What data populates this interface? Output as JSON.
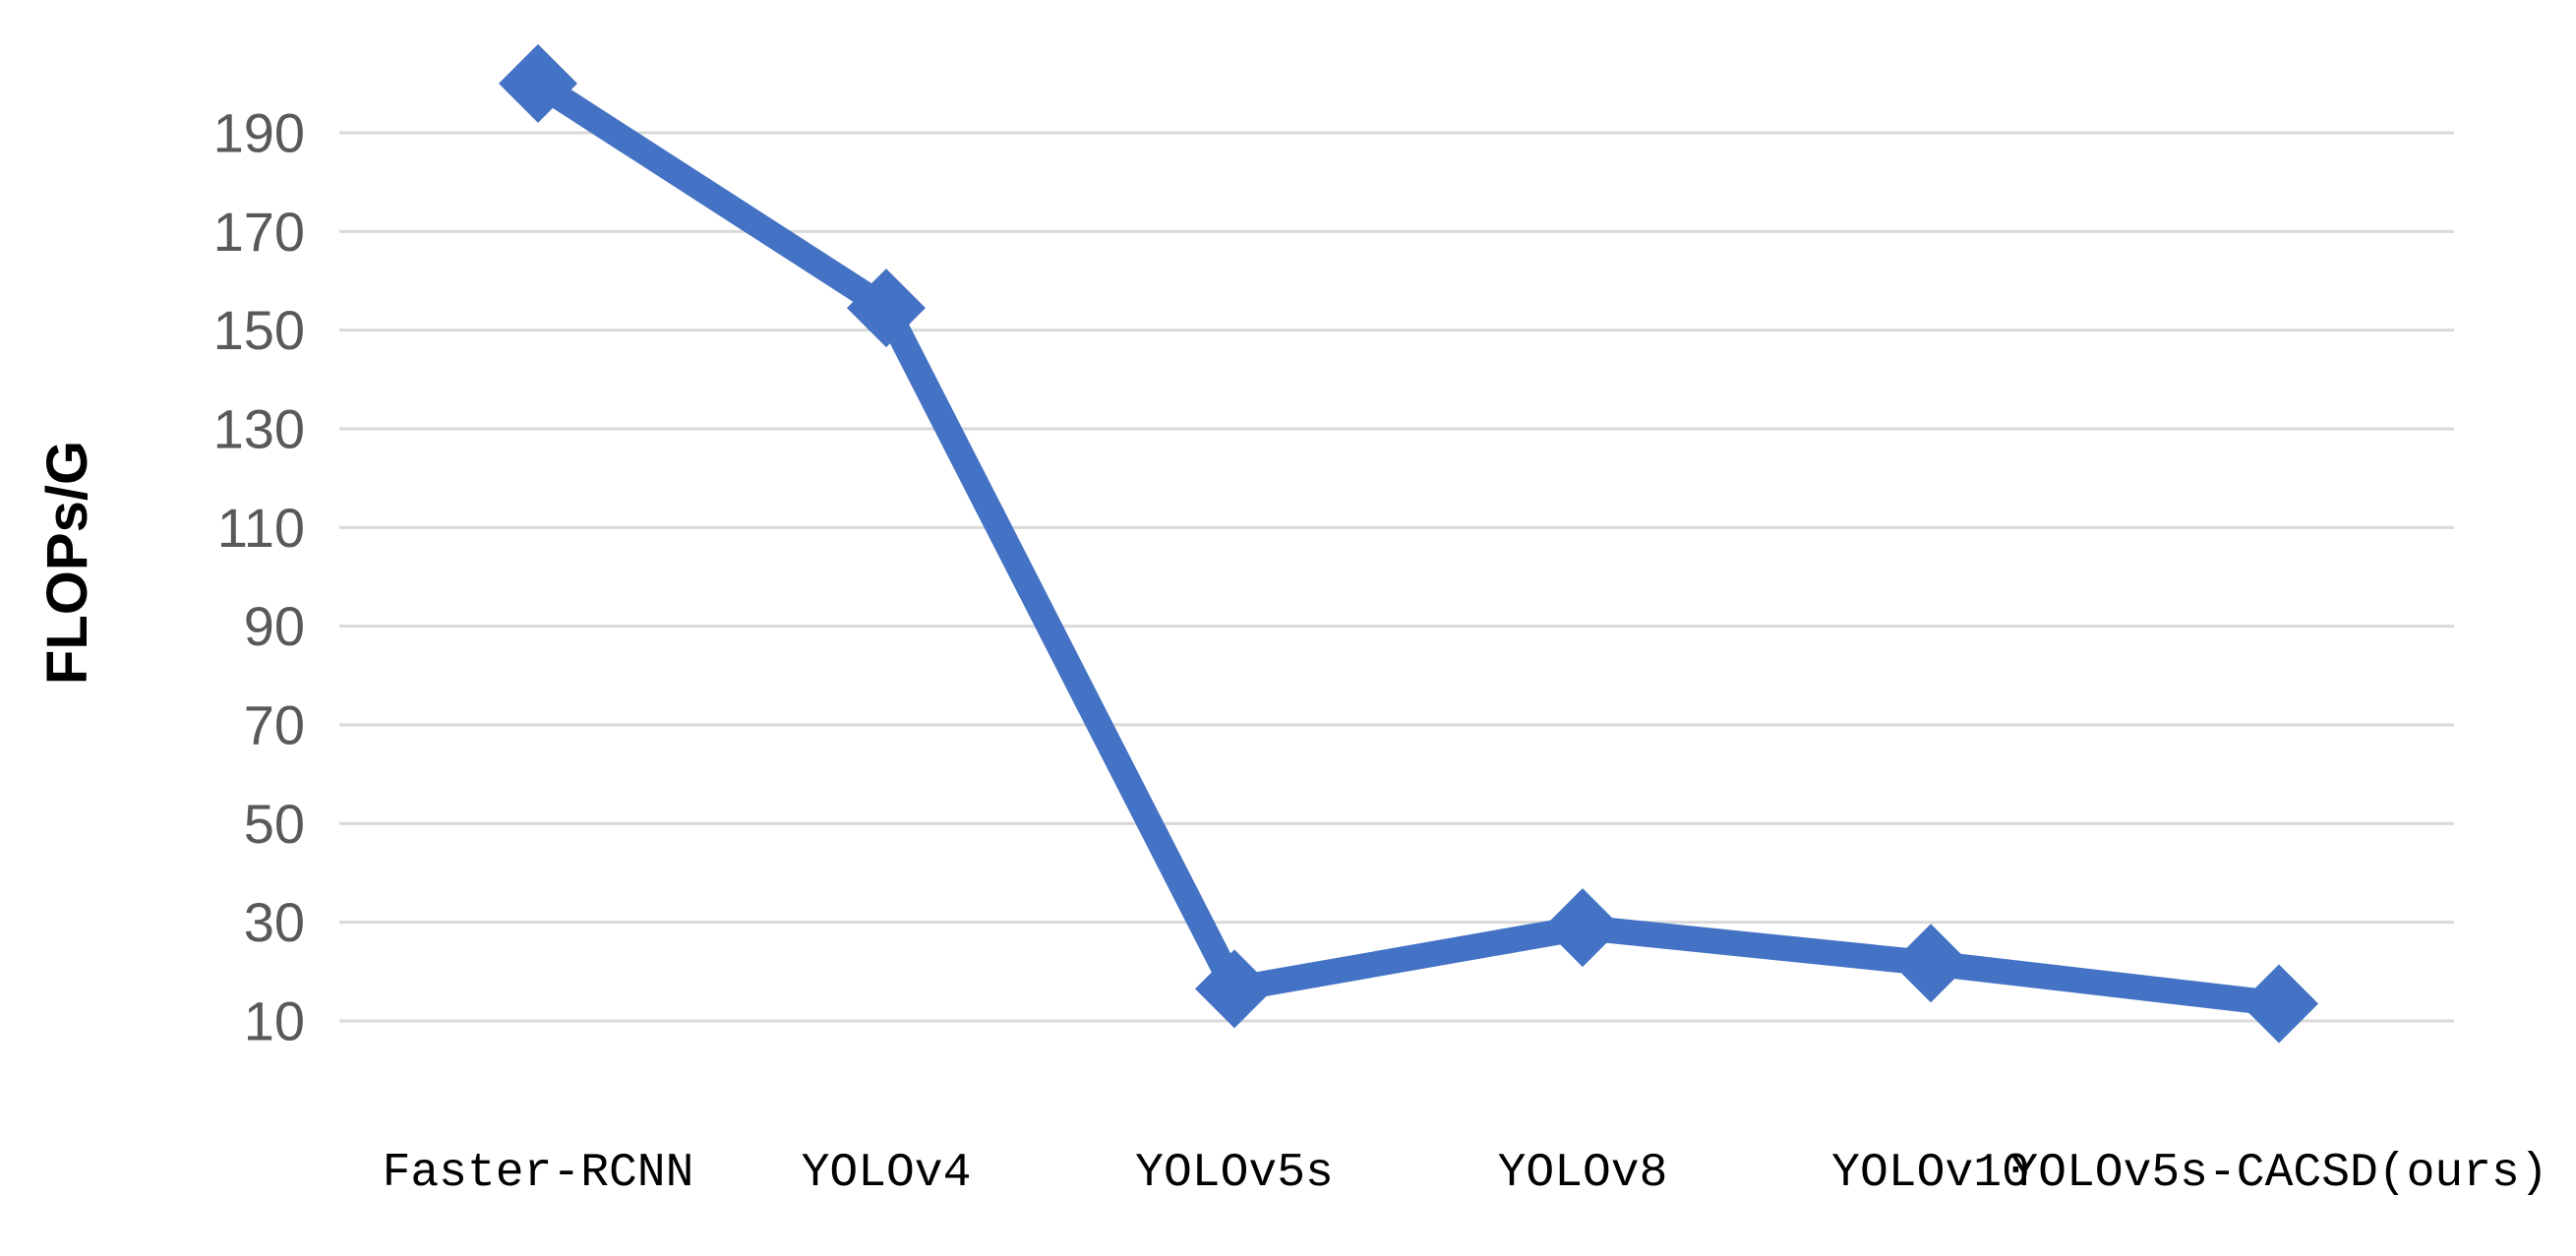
{
  "chart_data": {
    "type": "line",
    "title": "",
    "xlabel": "",
    "ylabel": "FLOPs/G",
    "categories": [
      "Faster-RCNN",
      "YOLOv4",
      "YOLOv5s",
      "YOLOv8",
      "YOLOv10",
      "YOLOv5s-CACSD(ours)"
    ],
    "yticks": [
      10,
      30,
      50,
      70,
      90,
      110,
      130,
      150,
      170,
      190
    ],
    "ylim": [
      10,
      190
    ],
    "grid": true,
    "legend": "none",
    "series": [
      {
        "values": [
          200,
          154.5,
          16.5,
          28.9,
          21.7,
          13.5
        ],
        "color": "#4472C4",
        "marker": "diamond"
      }
    ]
  }
}
